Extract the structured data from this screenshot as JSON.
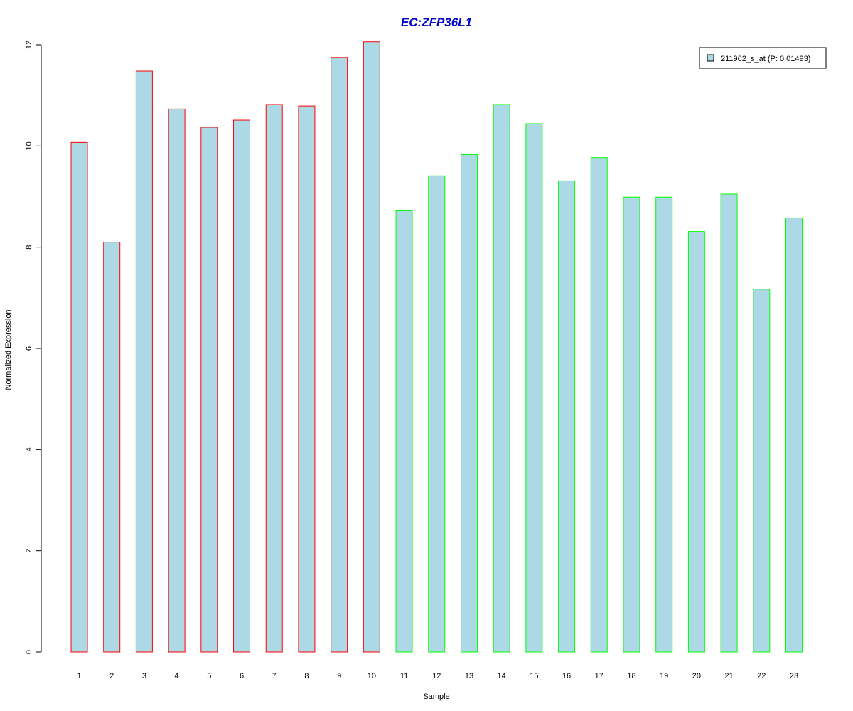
{
  "chart_data": {
    "type": "bar",
    "title": "EC:ZFP36L1",
    "xlabel": "Sample",
    "ylabel": "Normalized Expression",
    "ylim": [
      0,
      12
    ],
    "y_ticks": [
      0,
      2,
      4,
      6,
      8,
      10,
      12
    ],
    "categories": [
      "1",
      "2",
      "3",
      "4",
      "5",
      "6",
      "7",
      "8",
      "9",
      "10",
      "11",
      "12",
      "13",
      "14",
      "15",
      "16",
      "17",
      "18",
      "19",
      "20",
      "21",
      "22",
      "23"
    ],
    "series": [
      {
        "name": "211962_s_at (P: 0.01493)",
        "values": [
          10.07,
          8.1,
          11.48,
          10.73,
          10.37,
          10.51,
          10.82,
          10.79,
          11.75,
          12.06,
          8.72,
          9.41,
          9.83,
          10.82,
          10.44,
          9.31,
          9.77,
          8.99,
          8.99,
          8.31,
          9.05,
          7.17,
          8.58
        ]
      }
    ],
    "bar_border_colors": [
      "#ff0000",
      "#ff0000",
      "#ff0000",
      "#ff0000",
      "#ff0000",
      "#ff0000",
      "#ff0000",
      "#ff0000",
      "#ff0000",
      "#ff0000",
      "#00ff00",
      "#00ff00",
      "#00ff00",
      "#00ff00",
      "#00ff00",
      "#00ff00",
      "#00ff00",
      "#00ff00",
      "#00ff00",
      "#00ff00",
      "#00ff00",
      "#00ff00",
      "#00ff00"
    ],
    "bar_fill_color": "#add8e6",
    "title_color": "#0000cd",
    "grid": false,
    "legend_position": "top-right"
  }
}
